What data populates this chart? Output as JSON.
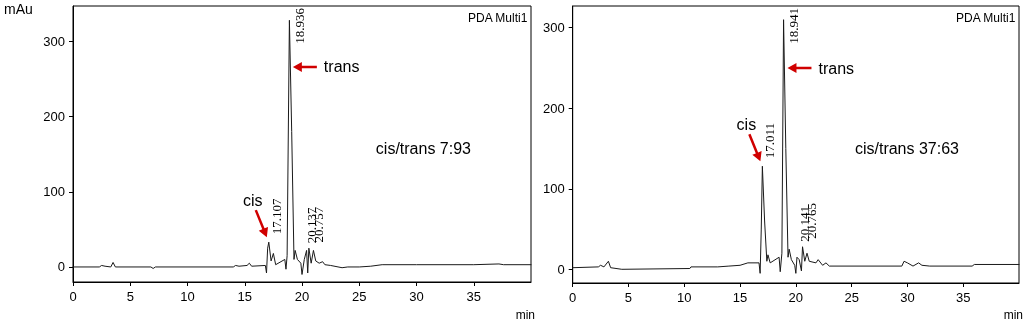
{
  "chart_data": [
    {
      "type": "line",
      "xlabel": "min",
      "ylabel": "mAu",
      "xlim": [
        0,
        40
      ],
      "ylim": [
        -20,
        347
      ],
      "xticks": [
        0,
        5,
        10,
        15,
        20,
        25,
        30,
        35
      ],
      "yticks": [
        0,
        100,
        200,
        300
      ],
      "grid": false,
      "legend": false,
      "marker": "none",
      "series": [
        {
          "color": "#1a1a1a",
          "x": [
            0,
            2.3,
            2.5,
            2.8,
            3.3,
            3.5,
            3.7,
            6.8,
            7.0,
            7.2,
            14,
            14.2,
            14.5,
            15.2,
            15.4,
            15.6,
            16.8,
            16.9,
            17.0,
            17.1,
            17.3,
            17.5,
            17.7,
            18.5,
            18.6,
            18.7,
            18.9,
            19.1,
            19.3,
            19.4,
            19.6,
            19.9,
            20.0,
            20.2,
            20.4,
            20.5,
            20.6,
            20.8,
            21.0,
            21.2,
            21.5,
            21.8,
            22.0,
            22.5,
            23.5,
            24,
            25,
            26,
            27,
            30,
            35,
            37.2,
            37.6,
            40
          ],
          "values": [
            0,
            0,
            2,
            1,
            0,
            6,
            0,
            0,
            -2,
            0,
            0,
            2,
            1,
            2,
            5,
            1,
            2,
            -8,
            25,
            33,
            8,
            18,
            3,
            10,
            -3,
            15,
            328,
            180,
            10,
            22,
            10,
            5,
            -10,
            10,
            22,
            -8,
            25,
            5,
            22,
            8,
            5,
            7,
            3,
            2,
            -1,
            0,
            0,
            1,
            3,
            3,
            3,
            4,
            3,
            3
          ]
        }
      ],
      "annotations": [
        "PDA Multi1",
        "cis/trans 7:93",
        {
          "text": "17.107",
          "x": 17.107,
          "y": 33
        },
        {
          "text": "18.936",
          "x": 18.936,
          "y": 328
        },
        {
          "text": "20.137",
          "x": 20.137,
          "y": 10
        },
        {
          "text": "20.757",
          "x": 20.757,
          "y": 22
        },
        {
          "text": "cis",
          "x": 17.1,
          "y": 33
        },
        {
          "text": "trans",
          "x": 18.94,
          "y": 266
        }
      ]
    },
    {
      "type": "line",
      "xlabel": "min",
      "xlim": [
        0,
        40
      ],
      "ylim": [
        -17,
        327
      ],
      "xticks": [
        0,
        5,
        10,
        15,
        20,
        25,
        30,
        35
      ],
      "yticks": [
        0,
        100,
        200,
        300
      ],
      "grid": false,
      "legend": false,
      "marker": "none",
      "series": [
        {
          "color": "#1a1a1a",
          "x": [
            0,
            2.3,
            2.5,
            2.8,
            3.2,
            3.4,
            4.4,
            10.5,
            10.6,
            13,
            14,
            15,
            15.7,
            16.7,
            16.8,
            16.9,
            17.0,
            17.2,
            17.4,
            17.5,
            17.7,
            18.5,
            18.6,
            18.75,
            18.9,
            19.1,
            19.3,
            19.4,
            19.6,
            19.9,
            20.0,
            20.1,
            20.3,
            20.5,
            20.6,
            20.8,
            21.0,
            21.2,
            21.8,
            22.0,
            22.4,
            22.7,
            23,
            29.5,
            29.7,
            30,
            30.5,
            31,
            31.3,
            32,
            35.8,
            36,
            40
          ],
          "values": [
            2,
            3,
            5,
            3,
            10,
            2,
            0,
            1,
            3,
            3,
            4,
            5,
            8,
            8,
            -5,
            50,
            128,
            60,
            10,
            18,
            8,
            15,
            -3,
            20,
            310,
            150,
            15,
            25,
            12,
            5,
            -5,
            15,
            12,
            -2,
            28,
            10,
            20,
            10,
            8,
            12,
            5,
            8,
            4,
            4,
            10,
            8,
            4,
            8,
            5,
            4,
            4,
            6,
            6
          ]
        }
      ],
      "annotations": [
        "PDA Multi1",
        "cis/trans 37:63",
        {
          "text": "17.011",
          "x": 17.011,
          "y": 128
        },
        {
          "text": "18.941",
          "x": 18.941,
          "y": 310
        },
        {
          "text": "20.141",
          "x": 20.141,
          "y": 15
        },
        {
          "text": "20.765",
          "x": 20.765,
          "y": 28
        },
        {
          "text": "cis",
          "x": 17.0,
          "y": 128
        },
        {
          "text": "trans",
          "x": 18.98,
          "y": 250
        }
      ]
    }
  ]
}
